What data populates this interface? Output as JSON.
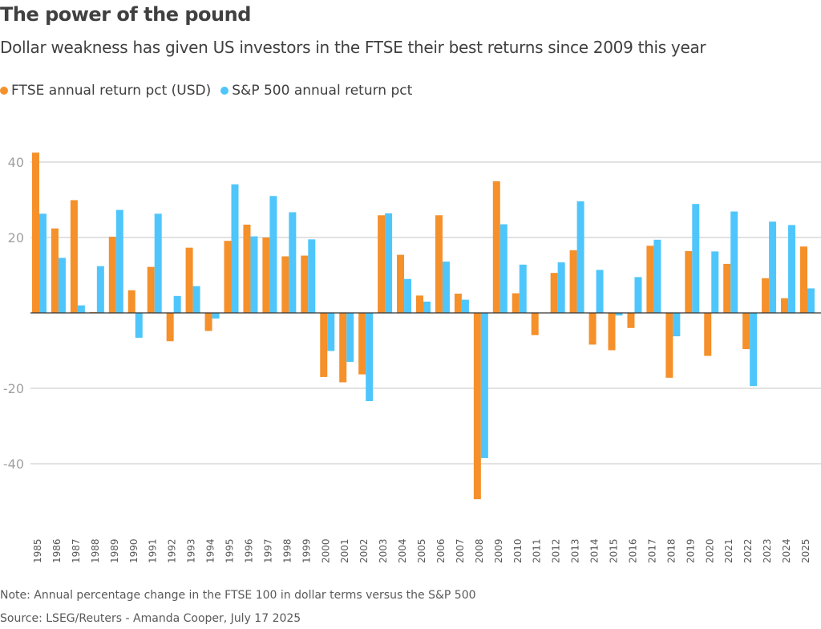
{
  "header": {
    "title": "The power of the pound",
    "subtitle": "Dollar weakness has given US investors in the FTSE their best returns since 2009 this year"
  },
  "legend": [
    {
      "label": "FTSE annual return pct (USD)",
      "color": "#f5902a"
    },
    {
      "label": "S&P 500 annual return pct",
      "color": "#4fc6fb"
    }
  ],
  "footer": {
    "note": "Note: Annual percentage change in the FTSE 100 in dollar terms versus the S&P 500",
    "source": "Source: LSEG/Reuters - Amanda Cooper, July 17 2025"
  },
  "chart_data": {
    "type": "bar",
    "title": "The power of the pound",
    "xlabel": "",
    "ylabel": "",
    "ylim": [
      -52,
      45
    ],
    "yticks": [
      40,
      20,
      0,
      -20,
      -40
    ],
    "ytick_labels": [
      "40",
      "20",
      "",
      "-20",
      "-40"
    ],
    "grid": true,
    "legend_position": "top-left",
    "categories": [
      "1985",
      "1986",
      "1987",
      "1988",
      "1989",
      "1990",
      "1991",
      "1992",
      "1993",
      "1994",
      "1995",
      "1996",
      "1997",
      "1998",
      "1999",
      "2000",
      "2001",
      "2002",
      "2003",
      "2004",
      "2005",
      "2006",
      "2007",
      "2008",
      "2009",
      "2010",
      "2011",
      "2012",
      "2013",
      "2014",
      "2015",
      "2016",
      "2017",
      "2018",
      "2019",
      "2020",
      "2021",
      "2022",
      "2023",
      "2024",
      "2025"
    ],
    "series": [
      {
        "name": "FTSE annual return pct (USD)",
        "color": "#f5902a",
        "values": [
          42.5,
          22.4,
          29.9,
          0.2,
          20.2,
          6.0,
          12.2,
          -7.5,
          17.3,
          -4.8,
          19.1,
          23.4,
          20.0,
          15.0,
          15.2,
          -17.0,
          -18.4,
          -16.3,
          25.9,
          15.4,
          4.6,
          25.9,
          5.1,
          -49.4,
          34.9,
          5.2,
          -5.9,
          10.6,
          16.6,
          -8.4,
          -9.9,
          -4.0,
          17.8,
          -17.2,
          16.4,
          -11.4,
          13.0,
          -9.6,
          9.2,
          3.9,
          17.6
        ]
      },
      {
        "name": "S&P 500 annual return pct",
        "color": "#4fc6fb",
        "values": [
          26.3,
          14.6,
          2.0,
          12.4,
          27.3,
          -6.6,
          26.3,
          4.5,
          7.1,
          -1.5,
          34.1,
          20.3,
          31.0,
          26.7,
          19.5,
          -10.1,
          -13.0,
          -23.4,
          26.4,
          9.0,
          3.0,
          13.6,
          3.5,
          -38.5,
          23.5,
          12.8,
          0.0,
          13.4,
          29.6,
          11.4,
          -0.7,
          9.5,
          19.4,
          -6.2,
          28.9,
          16.3,
          26.9,
          -19.4,
          24.2,
          23.3,
          6.5
        ]
      }
    ]
  }
}
